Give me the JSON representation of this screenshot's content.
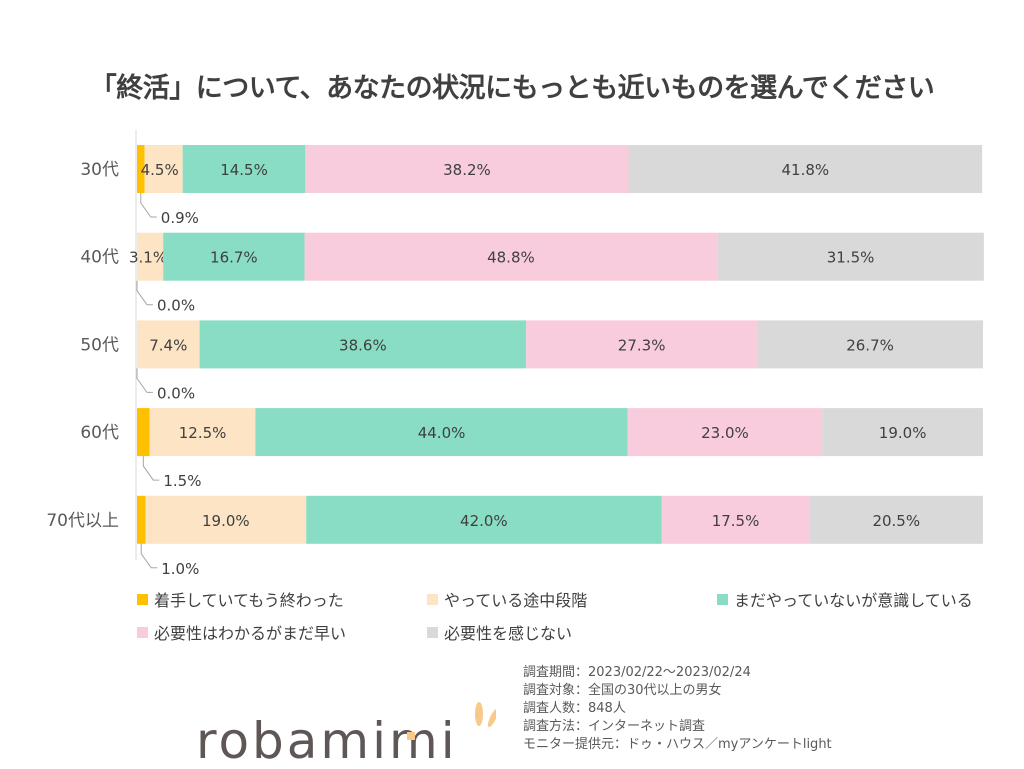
{
  "title": "「終活」について、あなたの状況にもっとも近いものを選んでください",
  "chart_data": {
    "type": "bar",
    "orientation": "horizontal",
    "stacked": "percent",
    "categories": [
      "30代",
      "40代",
      "50代",
      "60代",
      "70代以上"
    ],
    "series": [
      {
        "name": "着手していてもう終わった",
        "color": "#FFC000",
        "values": [
          0.9,
          0.0,
          0.0,
          1.5,
          1.0
        ]
      },
      {
        "name": "やっている途中段階",
        "color": "#FCE4C4",
        "values": [
          4.5,
          3.1,
          7.4,
          12.5,
          19.0
        ]
      },
      {
        "name": "まだやっていないが意識している",
        "color": "#88DDC4",
        "values": [
          14.5,
          16.7,
          38.6,
          44.0,
          42.0
        ]
      },
      {
        "name": "必要性はわかるがまだ早い",
        "color": "#F8CCDC",
        "values": [
          38.2,
          48.8,
          27.3,
          23.0,
          17.5
        ]
      },
      {
        "name": "必要性を感じない",
        "color": "#D9D9D9",
        "values": [
          41.8,
          31.5,
          26.7,
          19.0,
          20.5
        ]
      }
    ],
    "xlim": [
      0,
      100
    ],
    "grid": false,
    "legend": "bottom"
  },
  "notes": [
    "調査期間：2023/02/22～2023/02/24",
    "調査対象：全国の30代以上の男女",
    "調査人数：848人",
    "調査方法：インターネット調査",
    "モニター提供元：ドゥ・ハウス／myアンケートlight"
  ],
  "logo": "robamimi"
}
